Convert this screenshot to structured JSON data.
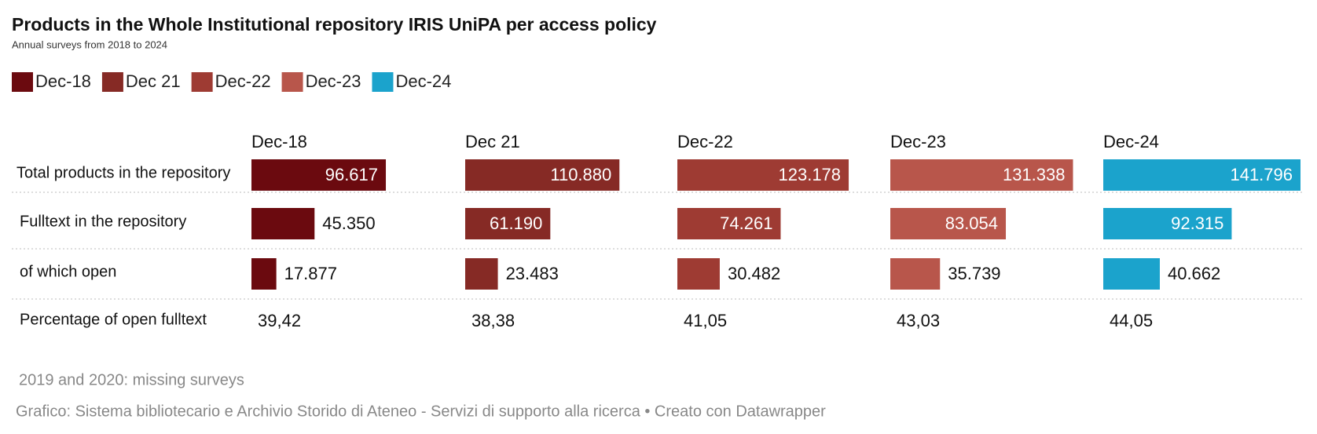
{
  "chart_data": {
    "type": "bar",
    "title": "Products in the Whole Institutional repository IRIS UniPA per access policy",
    "subtitle": "Annual surveys from 2018 to 2024",
    "categories": [
      "Total products in the repository",
      "Fulltext in the repository",
      "of which open",
      "Percentage of open fulltext"
    ],
    "series": [
      {
        "name": "Dec-18",
        "color": "#6b0a0f",
        "values": [
          96617,
          45350,
          17877,
          39.42
        ],
        "value_labels": [
          "96.617",
          "45.350",
          "17.877",
          "39,42"
        ]
      },
      {
        "name": "Dec 21",
        "color": "#862a25",
        "values": [
          110880,
          61190,
          23483,
          38.38
        ],
        "value_labels": [
          "110.880",
          "61.190",
          "23.483",
          "38,38"
        ]
      },
      {
        "name": "Dec-22",
        "color": "#9e3b33",
        "values": [
          123178,
          74261,
          30482,
          41.05
        ],
        "value_labels": [
          "123.178",
          "74.261",
          "30.482",
          "41,05"
        ]
      },
      {
        "name": "Dec-23",
        "color": "#b8564b",
        "values": [
          131338,
          83054,
          35739,
          43.03
        ],
        "value_labels": [
          "131.338",
          "83.054",
          "35.739",
          "43,03"
        ]
      },
      {
        "name": "Dec-24",
        "color": "#1ba3cc",
        "values": [
          141796,
          92315,
          40662,
          44.05
        ],
        "value_labels": [
          "141.796",
          "92.315",
          "40.662",
          "44,05"
        ]
      }
    ],
    "note": "2019 and 2020: missing surveys",
    "credit": "Grafico: Sistema bibliotecario e Archivio Storido di Ateneo - Servizi di supporto alla ricerca • Creato con Datawrapper"
  }
}
